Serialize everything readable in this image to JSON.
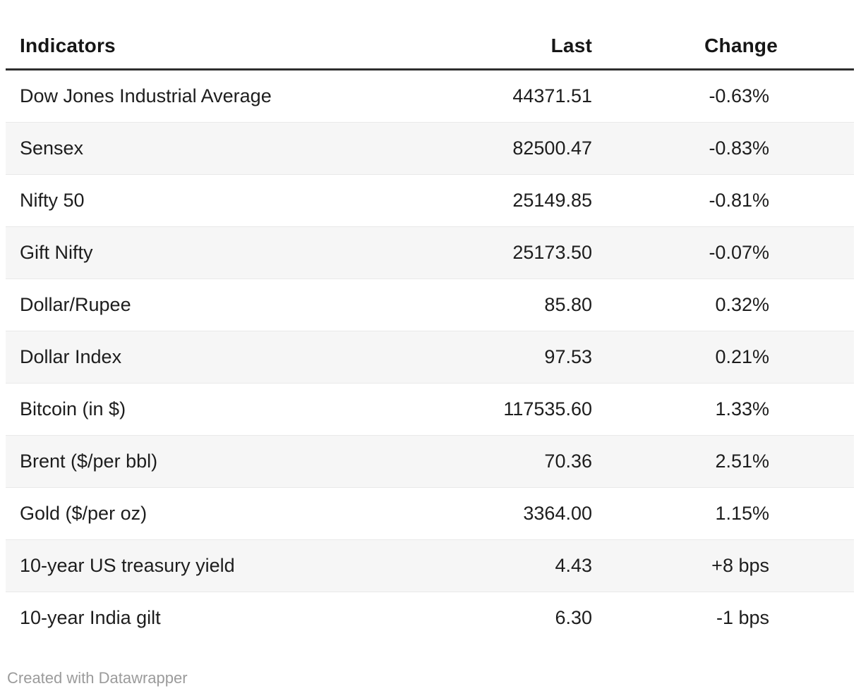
{
  "chart_data": {
    "type": "table",
    "columns": [
      "Indicators",
      "Last",
      "Change"
    ],
    "rows": [
      [
        "Dow Jones Industrial Average",
        "44371.51",
        "-0.63%"
      ],
      [
        "Sensex",
        "82500.47",
        "-0.83%"
      ],
      [
        "Nifty 50",
        "25149.85",
        "-0.81%"
      ],
      [
        "Gift Nifty",
        "25173.50",
        "-0.07%"
      ],
      [
        "Dollar/Rupee",
        "85.80",
        "0.32%"
      ],
      [
        "Dollar Index",
        "97.53",
        "0.21%"
      ],
      [
        "Bitcoin (in $)",
        "117535.60",
        "1.33%"
      ],
      [
        "Brent ($/per bbl)",
        "70.36",
        "2.51%"
      ],
      [
        "Gold ($/per oz)",
        "3364.00",
        "1.15%"
      ],
      [
        "10-year US treasury yield",
        "4.43",
        "+8 bps"
      ],
      [
        "10-year India gilt",
        "6.30",
        "-1 bps"
      ]
    ],
    "layout": {
      "striped_rows": true,
      "value_columns_align": "right",
      "grid": "horizontal-only"
    }
  },
  "footer": {
    "credit": "Created with Datawrapper"
  },
  "colors": {
    "background": "#ffffff",
    "text": "#1d1d1d",
    "header_text": "#161616",
    "header_rule": "#2e2e2e",
    "stripe": "#f6f6f6",
    "row_border": "#e9e9e9",
    "credit_text": "#9b9b9b"
  }
}
